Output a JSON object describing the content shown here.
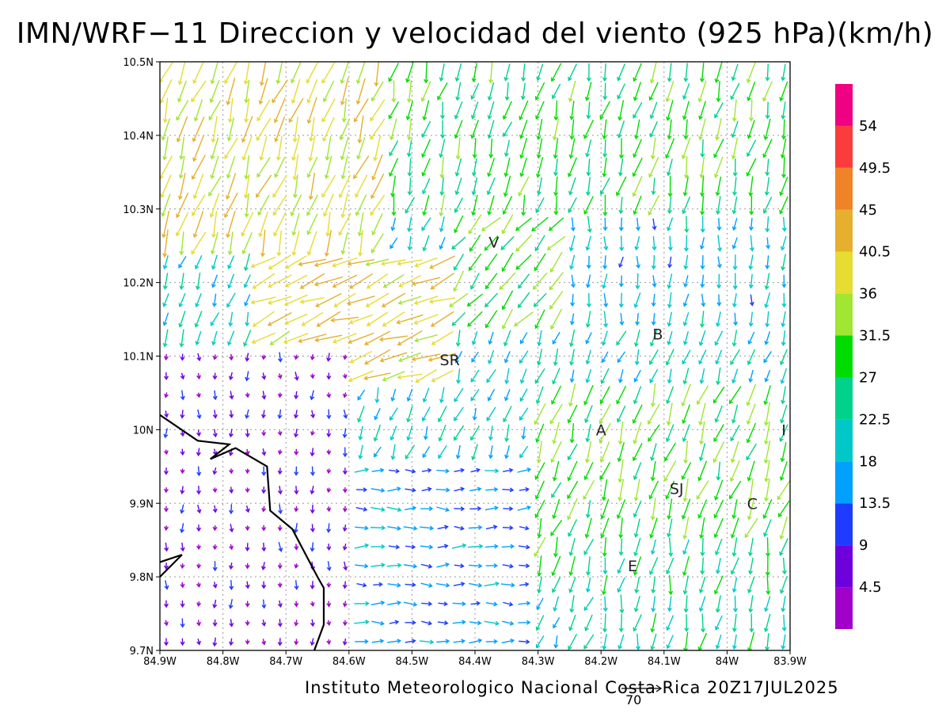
{
  "title": "IMN/WRF−11 Direccion y velocidad del viento (925 hPa)(km/h)",
  "credit": "Instituto Meteorologico Nacional Costa Rica 20Z17JUL2025",
  "reference_vector": {
    "label": "70"
  },
  "map": {
    "lon_range": [
      -84.9,
      -83.9
    ],
    "lat_range": [
      9.7,
      10.5
    ],
    "lon_ticks": [
      {
        "value": -84.9,
        "label": "84.9W"
      },
      {
        "value": -84.8,
        "label": "84.8W"
      },
      {
        "value": -84.7,
        "label": "84.7W"
      },
      {
        "value": -84.6,
        "label": "84.6W"
      },
      {
        "value": -84.5,
        "label": "84.5W"
      },
      {
        "value": -84.4,
        "label": "84.4W"
      },
      {
        "value": -84.3,
        "label": "84.3W"
      },
      {
        "value": -84.2,
        "label": "84.2W"
      },
      {
        "value": -84.1,
        "label": "84.1W"
      },
      {
        "value": -84.0,
        "label": "84W"
      },
      {
        "value": -83.9,
        "label": "83.9W"
      }
    ],
    "lat_ticks": [
      {
        "value": 9.7,
        "label": "9.7N"
      },
      {
        "value": 9.8,
        "label": "9.8N"
      },
      {
        "value": 9.9,
        "label": "9.9N"
      },
      {
        "value": 10.0,
        "label": "10N"
      },
      {
        "value": 10.1,
        "label": "10.1N"
      },
      {
        "value": 10.2,
        "label": "10.2N"
      },
      {
        "value": 10.3,
        "label": "10.3N"
      },
      {
        "value": 10.4,
        "label": "10.4N"
      },
      {
        "value": 10.5,
        "label": "10.5N"
      }
    ],
    "places": [
      {
        "name": "V",
        "lon": -84.37,
        "lat": 10.255
      },
      {
        "name": "SR",
        "lon": -84.44,
        "lat": 10.095
      },
      {
        "name": "B",
        "lon": -84.11,
        "lat": 10.13
      },
      {
        "name": "A",
        "lon": -84.2,
        "lat": 10.0
      },
      {
        "name": "I",
        "lon": -83.91,
        "lat": 10.0
      },
      {
        "name": "SJ",
        "lon": -84.08,
        "lat": 9.92
      },
      {
        "name": "C",
        "lon": -83.96,
        "lat": 9.9
      },
      {
        "name": "E",
        "lon": -84.15,
        "lat": 9.815
      }
    ],
    "coastline": [
      [
        -84.9,
        10.02
      ],
      [
        -84.84,
        9.985
      ],
      [
        -84.79,
        9.98
      ],
      [
        -84.82,
        9.96
      ],
      [
        -84.78,
        9.975
      ],
      [
        -84.73,
        9.95
      ],
      [
        -84.725,
        9.89
      ],
      [
        -84.69,
        9.865
      ],
      [
        -84.65,
        9.8
      ],
      [
        -84.64,
        9.785
      ],
      [
        -84.64,
        9.735
      ],
      [
        -84.655,
        9.7
      ]
    ],
    "coastline2": [
      [
        -84.9,
        9.82
      ],
      [
        -84.865,
        9.83
      ],
      [
        -84.9,
        9.8
      ]
    ],
    "wind_field_note": "Representative wind vectors (direction toward, speed km/h)",
    "wind_regions": [
      {
        "lon": [
          -84.9,
          -84.55
        ],
        "lat": [
          10.25,
          10.5
        ],
        "dir_deg": 200,
        "speed": 38
      },
      {
        "lon": [
          -84.55,
          -83.9
        ],
        "lat": [
          10.3,
          10.5
        ],
        "dir_deg": 195,
        "speed": 28
      },
      {
        "lon": [
          -84.75,
          -84.45
        ],
        "lat": [
          10.05,
          10.25
        ],
        "dir_deg": 250,
        "speed": 40
      },
      {
        "lon": [
          -84.45,
          -84.25
        ],
        "lat": [
          10.15,
          10.3
        ],
        "dir_deg": 220,
        "speed": 30
      },
      {
        "lon": [
          -84.25,
          -83.9
        ],
        "lat": [
          10.15,
          10.3
        ],
        "dir_deg": 185,
        "speed": 18
      },
      {
        "lon": [
          -84.9,
          -84.6
        ],
        "lat": [
          9.7,
          10.1
        ],
        "dir_deg": 180,
        "speed": 6
      },
      {
        "lon": [
          -84.6,
          -84.3
        ],
        "lat": [
          9.7,
          9.95
        ],
        "dir_deg": 90,
        "speed": 15
      },
      {
        "lon": [
          -84.3,
          -83.9
        ],
        "lat": [
          9.8,
          10.05
        ],
        "dir_deg": 200,
        "speed": 30
      },
      {
        "lon": [
          -84.2,
          -83.9
        ],
        "lat": [
          9.7,
          9.85
        ],
        "dir_deg": 190,
        "speed": 24
      }
    ]
  },
  "colorbar": {
    "colors": [
      "#a000c8",
      "#6e00dc",
      "#1e3cff",
      "#00a0ff",
      "#00c8c8",
      "#00d28c",
      "#00dc00",
      "#a0e632",
      "#e6dc32",
      "#e6af2d",
      "#f08228",
      "#fa3c3c",
      "#f00082"
    ],
    "labels": [
      "4.5",
      "9",
      "13.5",
      "18",
      "22.5",
      "27",
      "31.5",
      "36",
      "40.5",
      "45",
      "49.5",
      "54"
    ],
    "bounds": [
      0,
      4.5,
      9,
      13.5,
      18,
      22.5,
      27,
      31.5,
      36,
      40.5,
      45,
      49.5,
      54,
      60
    ]
  }
}
